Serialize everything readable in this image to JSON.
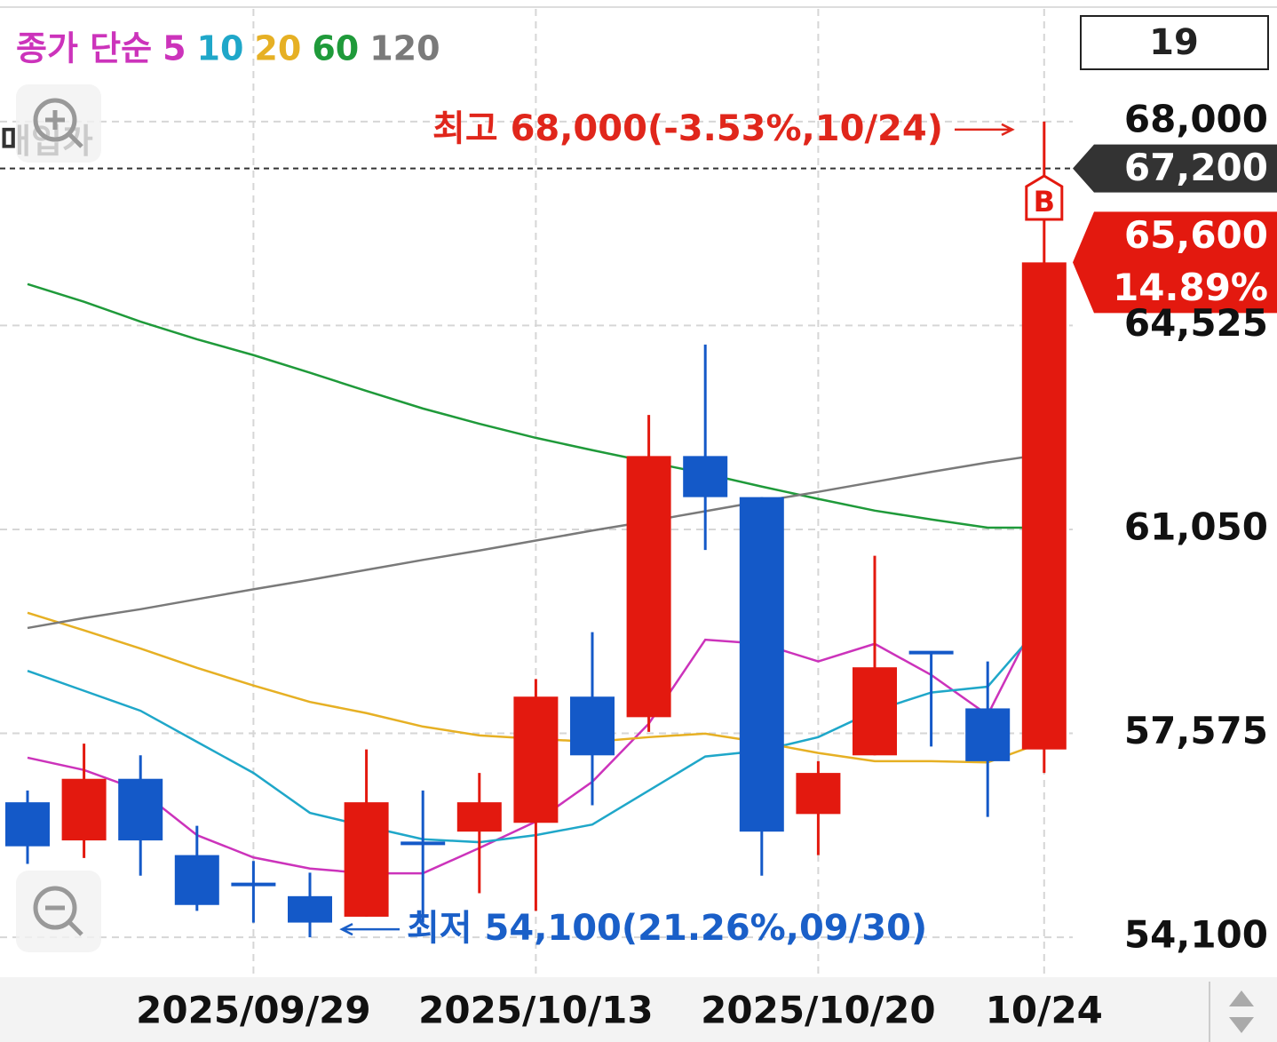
{
  "chart_data": {
    "type": "candlestick",
    "legend_title": "종가 단순",
    "period": "19",
    "categories": [
      null,
      null,
      null,
      null,
      "2025/09/29",
      null,
      null,
      null,
      null,
      "2025/10/13",
      null,
      null,
      null,
      null,
      "2025/10/20",
      null,
      null,
      null,
      "10/24"
    ],
    "open": [
      56400,
      55750,
      56800,
      55500,
      55000,
      54800,
      54450,
      55700,
      55900,
      56050,
      58200,
      57850,
      62300,
      61600,
      56200,
      57200,
      58950,
      58000,
      57300
    ],
    "high": [
      56600,
      57400,
      57200,
      56000,
      55400,
      55200,
      57300,
      56600,
      56900,
      58500,
      59300,
      63000,
      64200,
      61600,
      57100,
      60600,
      58950,
      58800,
      68000
    ],
    "low": [
      55350,
      55450,
      55150,
      54550,
      54350,
      54100,
      54450,
      54350,
      54850,
      54550,
      56350,
      57600,
      60700,
      55150,
      55500,
      57200,
      57350,
      56150,
      56900
    ],
    "close": [
      55650,
      56800,
      55750,
      54650,
      55000,
      54350,
      56400,
      55700,
      56400,
      58200,
      57200,
      62300,
      61600,
      55900,
      56900,
      58700,
      58950,
      57100,
      65600
    ],
    "up_color": "#e3190f",
    "down_color": "#1459c8",
    "series": [
      {
        "name": "5",
        "color": "#cc33bb",
        "values": [
          57160,
          56950,
          56600,
          55840,
          55460,
          55270,
          55190,
          55190,
          55620,
          56070,
          56750,
          57740,
          59170,
          59100,
          58800,
          59100,
          58570,
          57890,
          59780
        ]
      },
      {
        "name": "10",
        "color": "#1fa7c9",
        "values": [
          58640,
          58300,
          57960,
          57430,
          56900,
          56220,
          55990,
          55770,
          55720,
          55840,
          56020,
          56600,
          57180,
          57280,
          57510,
          57960,
          58270,
          58370,
          59480
        ]
      },
      {
        "name": "20",
        "color": "#e6b024",
        "values": [
          59630,
          59330,
          59020,
          58690,
          58390,
          58110,
          57920,
          57690,
          57540,
          57480,
          57430,
          57510,
          57570,
          57420,
          57240,
          57100,
          57100,
          57080,
          57430
        ]
      },
      {
        "name": "60",
        "color": "#1f9a3a",
        "values": [
          65230,
          64930,
          64590,
          64290,
          64020,
          63720,
          63410,
          63110,
          62850,
          62610,
          62400,
          62200,
          62000,
          61780,
          61570,
          61370,
          61220,
          61080,
          61080
        ]
      },
      {
        "name": "120",
        "color": "#7a7a7a",
        "values": [
          59370,
          59540,
          59690,
          59860,
          60030,
          60190,
          60360,
          60530,
          60690,
          60860,
          61030,
          61190,
          61360,
          61530,
          61690,
          61860,
          62030,
          62190,
          62330
        ]
      }
    ],
    "ylim": [
      53420,
      69920
    ],
    "yticks": [
      {
        "value": 54100,
        "label": "54,100"
      },
      {
        "value": 57575,
        "label": "57,575"
      },
      {
        "value": 61050,
        "label": "61,050"
      },
      {
        "value": 64525,
        "label": "64,525"
      },
      {
        "value": 68000,
        "label": "68,000"
      }
    ],
    "grid": true,
    "high_label": "최고 68,000(-3.53%,10/24)",
    "low_label": "최저 54,100(21.26%,09/30)",
    "purchase": {
      "label": "매입가",
      "value": 67200,
      "value_label": "67,200"
    },
    "current": {
      "value": 65600,
      "value_label": "65,600",
      "change_label": "14.89%"
    },
    "buy_marker": "B"
  }
}
